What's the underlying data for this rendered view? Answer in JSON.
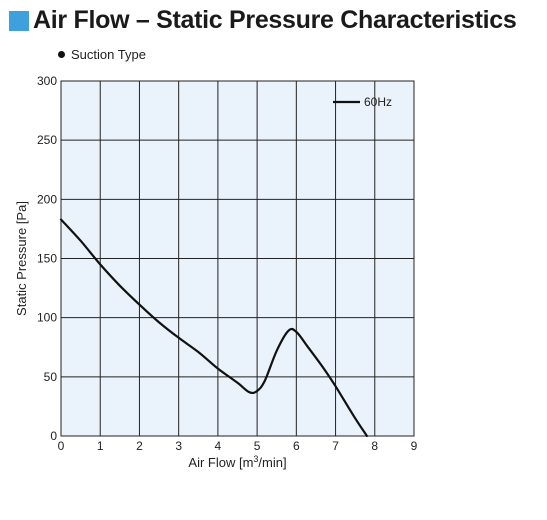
{
  "header": {
    "title": "Air Flow – Static Pressure Characteristics",
    "accent_color": "#3fa0dc"
  },
  "subtitle": "Suction Type",
  "chart_data": {
    "type": "line",
    "title": "Air Flow – Static Pressure Characteristics",
    "subtitle": "Suction Type",
    "xlabel_base": "Air Flow [m",
    "xlabel_sup": "3",
    "xlabel_tail": "/min]",
    "ylabel": "Static Pressure [Pa]",
    "xlim": [
      0,
      9
    ],
    "ylim": [
      0,
      300
    ],
    "x_ticks": [
      0,
      1,
      2,
      3,
      4,
      5,
      6,
      7,
      8,
      9
    ],
    "y_ticks": [
      0,
      50,
      100,
      150,
      200,
      250,
      300
    ],
    "grid": true,
    "plot_background": "#eaf2fb",
    "legend_position": "top-right",
    "series": [
      {
        "name": "60Hz",
        "color": "#111111",
        "x": [
          0,
          0.5,
          1.0,
          1.5,
          2.0,
          2.5,
          3.0,
          3.5,
          4.0,
          4.5,
          4.8,
          5.0,
          5.2,
          5.5,
          5.8,
          6.0,
          6.3,
          6.7,
          7.0,
          7.5,
          7.8
        ],
        "y": [
          183,
          165,
          145,
          127,
          111,
          96,
          83,
          71,
          57,
          45,
          37,
          38,
          47,
          72,
          89,
          88,
          75,
          57,
          42,
          15,
          0
        ]
      }
    ]
  }
}
